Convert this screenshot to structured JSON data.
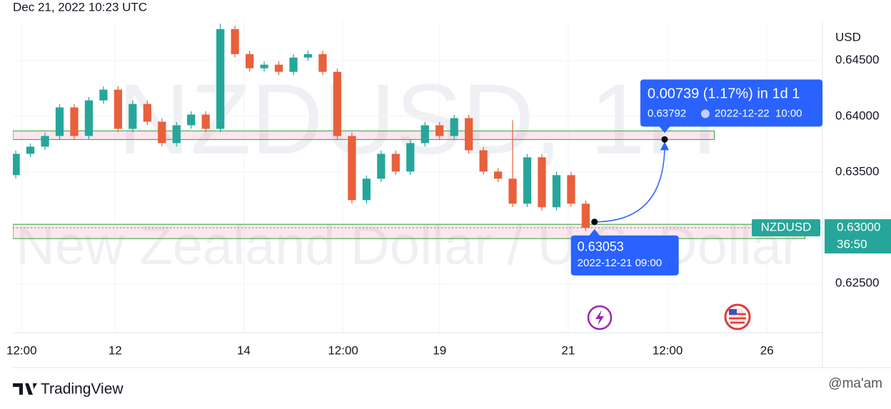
{
  "chart_data": {
    "type": "candlestick",
    "timestamp": "Dec 21, 2022 10:23 UTC",
    "watermark": "NZDUSD, 1H",
    "watermark_subtitle": "New Zealand Dollar / U.S. Dollar",
    "currency": "USD",
    "symbol": "NZDUSD",
    "up_color": "#26a69a",
    "down_color": "#e8603c",
    "grid": true,
    "x": [
      1,
      6,
      11,
      16,
      21,
      26,
      31,
      36,
      41,
      46,
      51,
      56,
      61,
      66,
      71,
      76,
      81,
      86,
      91,
      96,
      101,
      106,
      111,
      116,
      121,
      126,
      131,
      136,
      141,
      146,
      151,
      156,
      161,
      166,
      171,
      176,
      181,
      186,
      191,
      196
    ],
    "open": [
      0.63472,
      0.63663,
      0.63727,
      0.63823,
      0.64079,
      0.63823,
      0.64142,
      0.64238,
      0.63887,
      0.6411,
      0.63951,
      0.63759,
      0.63919,
      0.64015,
      0.63887,
      0.64781,
      0.64557,
      0.6443,
      0.64462,
      0.64398,
      0.64526,
      0.64557,
      0.64398,
      0.63823,
      0.63248,
      0.6344,
      0.63663,
      0.63504,
      0.63759,
      0.63919,
      0.63823,
      0.63983,
      0.63695,
      0.63504,
      0.6344,
      0.63216,
      0.63632,
      0.63184,
      0.63472,
      0.63216
    ],
    "high": [
      0.63693,
      0.63757,
      0.63853,
      0.64109,
      0.64109,
      0.64172,
      0.64268,
      0.64268,
      0.6414,
      0.6414,
      0.63981,
      0.63949,
      0.64045,
      0.64045,
      0.6483,
      0.64811,
      0.64587,
      0.64492,
      0.64492,
      0.64556,
      0.64587,
      0.64587,
      0.64428,
      0.63853,
      0.6347,
      0.63693,
      0.63693,
      0.63789,
      0.63949,
      0.63949,
      0.64013,
      0.64013,
      0.63725,
      0.63534,
      0.63964,
      0.63662,
      0.63662,
      0.63502,
      0.63502,
      0.63246
    ],
    "low": [
      0.63442,
      0.63633,
      0.63697,
      0.63793,
      0.63793,
      0.63793,
      0.64112,
      0.63857,
      0.63857,
      0.63921,
      0.63729,
      0.63729,
      0.63889,
      0.63857,
      0.63857,
      0.64527,
      0.644,
      0.644,
      0.64368,
      0.64368,
      0.64496,
      0.64368,
      0.63793,
      0.63218,
      0.63218,
      0.6341,
      0.63474,
      0.63474,
      0.63729,
      0.63793,
      0.63793,
      0.63665,
      0.63474,
      0.6341,
      0.63186,
      0.63186,
      0.63154,
      0.63154,
      0.63186,
      0.6297
    ],
    "close": [
      0.63663,
      0.63727,
      0.63823,
      0.64079,
      0.63823,
      0.64142,
      0.64238,
      0.63887,
      0.6411,
      0.63951,
      0.63759,
      0.63919,
      0.64015,
      0.63887,
      0.64781,
      0.64557,
      0.6443,
      0.64462,
      0.64398,
      0.64526,
      0.64557,
      0.64398,
      0.63823,
      0.63248,
      0.6344,
      0.63663,
      0.63504,
      0.63759,
      0.63919,
      0.63823,
      0.63983,
      0.63695,
      0.63504,
      0.6344,
      0.63216,
      0.63632,
      0.63184,
      0.63472,
      0.63216,
      0.63
    ],
    "xlim": [
      0,
      277
    ],
    "xticks": [
      {
        "value": 3,
        "label": "12:00"
      },
      {
        "value": 35,
        "label": "12"
      },
      {
        "value": 79,
        "label": "14"
      },
      {
        "value": 113,
        "label": "12:00"
      },
      {
        "value": 146,
        "label": "19"
      },
      {
        "value": 190,
        "label": "21"
      },
      {
        "value": 224,
        "label": "12:00"
      },
      {
        "value": 258,
        "label": "26"
      }
    ],
    "ylim": [
      0.6206,
      0.6485
    ],
    "yticks": [
      {
        "value": 0.625,
        "label": "0.62500"
      },
      {
        "value": 0.63,
        "label": "0.63000"
      },
      {
        "value": 0.635,
        "label": "0.63500"
      },
      {
        "value": 0.64,
        "label": "0.64000"
      },
      {
        "value": 0.645,
        "label": "0.64500"
      }
    ],
    "last_price": 0.63,
    "last_price_label": "0.63000",
    "countdown": "36:50",
    "zones": [
      {
        "low": 0.63791,
        "high": 0.63868,
        "x": [
          0,
          240
        ]
      },
      {
        "low": 0.62903,
        "high": 0.63031,
        "x": [
          0,
          271
        ]
      }
    ],
    "projection": {
      "change": "0.00739 (1.17%) in 1d 1",
      "from": {
        "x": 199,
        "value": 0.63053,
        "time": "2022-12-21 09:00"
      },
      "to": {
        "x": 223,
        "value": 0.63792,
        "time": "2022-12-22  10:00"
      }
    },
    "footer": {
      "brand": "TradingView",
      "credit": "@ma'am"
    }
  }
}
